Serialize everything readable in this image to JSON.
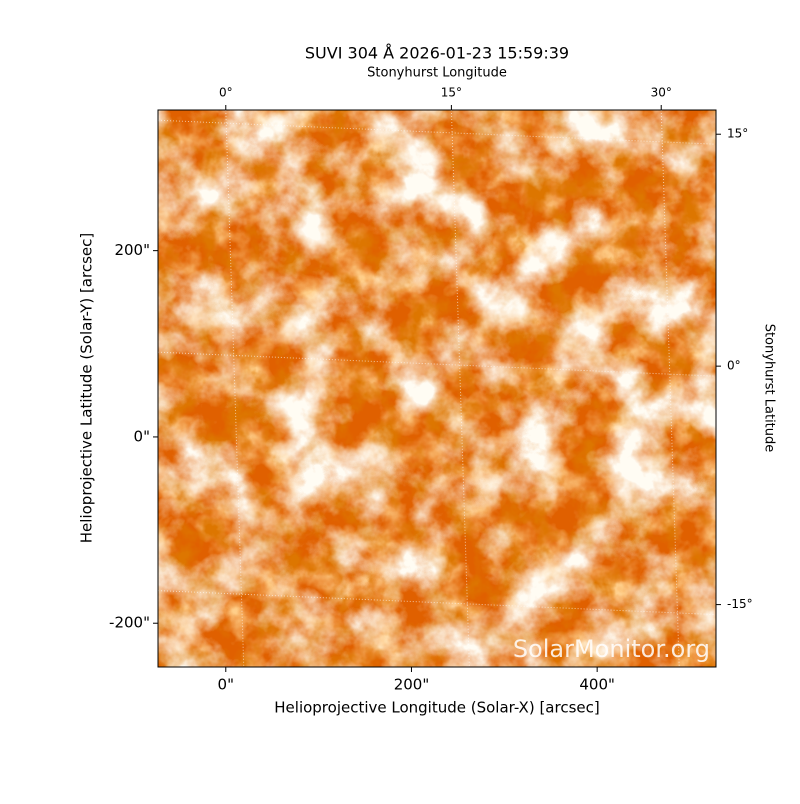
{
  "chart_data": {
    "type": "image",
    "title": "SUVI 304 Å 2026-01-23 15:59:39",
    "xlabel": "Helioprojective Longitude (Solar-X) [arcsec]",
    "ylabel": "Helioprojective Latitude (Solar-Y) [arcsec]",
    "x2label": "Stonyhurst Longitude",
    "y2label": "Stonyhurst Latitude",
    "watermark": "SolarMonitor.org",
    "xlim": [
      -73,
      528
    ],
    "ylim": [
      -247,
      351
    ],
    "xticks": [
      {
        "value": 0,
        "label": "0\""
      },
      {
        "value": 200,
        "label": "200\""
      },
      {
        "value": 400,
        "label": "400\""
      }
    ],
    "yticks": [
      {
        "value": -200,
        "label": "-200\""
      },
      {
        "value": 0,
        "label": "0\""
      },
      {
        "value": 200,
        "label": "200\""
      }
    ],
    "x2ticks": [
      {
        "value": 0,
        "label": "0°"
      },
      {
        "value": 243,
        "label": "15°"
      },
      {
        "value": 469,
        "label": "30°"
      }
    ],
    "y2ticks": [
      {
        "value": -180,
        "label": "-15°"
      },
      {
        "value": 76,
        "label": "0°"
      },
      {
        "value": 325,
        "label": "15°"
      }
    ],
    "grid": true
  }
}
